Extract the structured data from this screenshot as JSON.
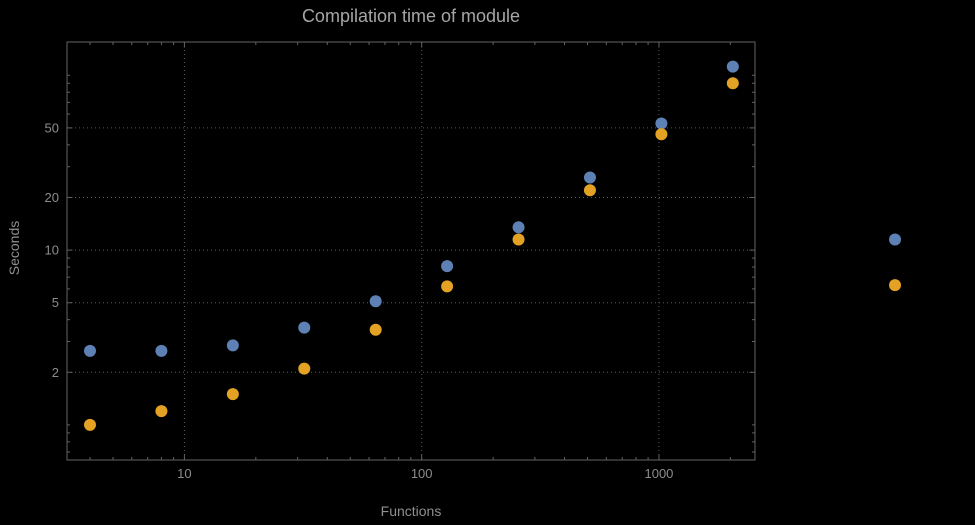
{
  "chart_data": {
    "type": "scatter",
    "title": "Compilation time of module",
    "xlabel": "Functions",
    "ylabel": "Seconds",
    "x_scale": "log",
    "y_scale": "log",
    "grid": "dotted",
    "legend_position": "outside-right",
    "xlim": [
      3.2,
      2540
    ],
    "ylim": [
      0.63,
      155
    ],
    "x_ticks": [
      10,
      100,
      1000
    ],
    "y_ticks": [
      2,
      5,
      10,
      20,
      50
    ],
    "x": [
      4,
      8,
      16,
      32,
      64,
      128,
      256,
      512,
      1024,
      2048
    ],
    "series": [
      {
        "name": "series-1-blue",
        "color": "#5e81b5",
        "values": [
          2.65,
          2.65,
          2.85,
          3.6,
          5.1,
          8.1,
          13.5,
          26,
          53,
          112
        ]
      },
      {
        "name": "series-2-orange",
        "color": "#e3a224",
        "values": [
          1.0,
          1.2,
          1.5,
          2.1,
          3.5,
          6.2,
          11.5,
          22,
          46,
          90
        ]
      }
    ],
    "legend_markers": [
      {
        "series": "series-1-blue",
        "color": "#5e81b5",
        "y_value": 11.5
      },
      {
        "series": "series-2-orange",
        "color": "#e3a224",
        "y_value": 6.3
      }
    ]
  },
  "colors": {
    "background": "#000000",
    "frame": "#636363",
    "grid": "#5a5a5a",
    "tick_label": "#8c8c8c",
    "title": "#a6a6a6",
    "axis_label": "#8f8f8f"
  }
}
